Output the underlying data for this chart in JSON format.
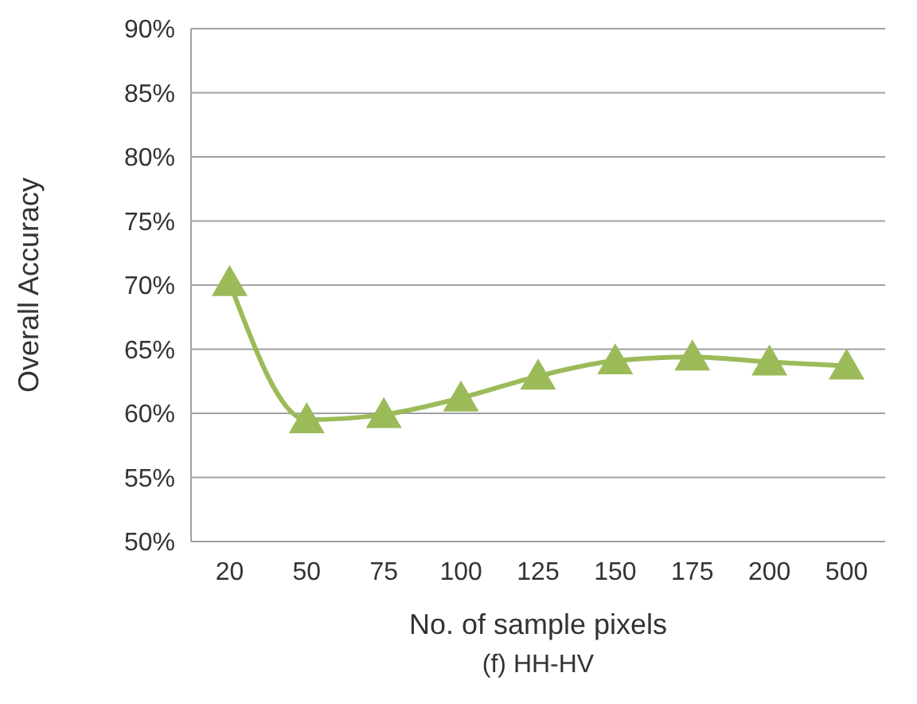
{
  "chart_data": {
    "type": "line",
    "xlabel": "No. of sample pixels",
    "ylabel": "Overall Accuracy",
    "annotations": [
      "(f) HH-HV"
    ],
    "categories": [
      "20",
      "50",
      "75",
      "100",
      "125",
      "150",
      "175",
      "200",
      "500"
    ],
    "series": [
      {
        "color": "#9bbb59",
        "values": [
          70.2,
          59.5,
          59.9,
          61.2,
          62.9,
          64.1,
          64.4,
          64.0,
          63.7
        ]
      }
    ],
    "ylim": [
      50,
      90
    ],
    "yticks": [
      {
        "value": 50,
        "label": "50%"
      },
      {
        "value": 55,
        "label": "55%"
      },
      {
        "value": 60,
        "label": "60%"
      },
      {
        "value": 65,
        "label": "65%"
      },
      {
        "value": 70,
        "label": "70%"
      },
      {
        "value": 75,
        "label": "75%"
      },
      {
        "value": 80,
        "label": "80%"
      },
      {
        "value": 85,
        "label": "85%"
      },
      {
        "value": 90,
        "label": "90%"
      }
    ],
    "grid": "y",
    "marker": "triangle",
    "line_style": "solid"
  }
}
